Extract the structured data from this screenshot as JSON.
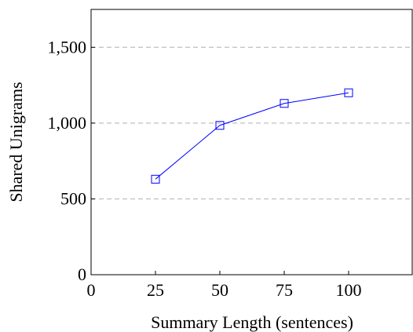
{
  "chart_data": {
    "type": "line",
    "title": "",
    "xlabel": "Summary Length (sentences)",
    "ylabel": "Shared Unigrams",
    "xlim": [
      0,
      125
    ],
    "ylim": [
      0,
      1750
    ],
    "x_ticks": [
      0,
      25,
      50,
      75,
      100
    ],
    "x_tick_labels": [
      "0",
      "25",
      "50",
      "75",
      "100"
    ],
    "y_ticks": [
      0,
      500,
      1000,
      1500
    ],
    "y_tick_labels": [
      "0",
      "500",
      "1,000",
      "1,500"
    ],
    "grid": "horizontal dashed at y ticks",
    "legend": "none",
    "marker": "square",
    "color": "#0000ff",
    "series": [
      {
        "x": [
          25,
          50,
          75,
          100
        ],
        "y": [
          630,
          985,
          1130,
          1200
        ]
      }
    ]
  }
}
